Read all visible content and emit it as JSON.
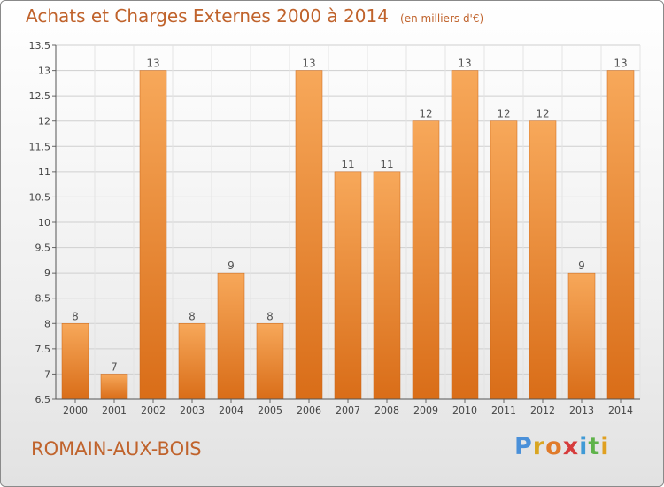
{
  "title": "Achats et Charges Externes 2000 à 2014",
  "unit_note": "(en milliers d'€)",
  "commune": "ROMAIN-AUX-BOIS",
  "logo": {
    "letters": [
      "P",
      "r",
      "o",
      "x",
      "i",
      "t",
      "i"
    ],
    "colors": [
      "#4a90d9",
      "#d9a520",
      "#e07b2a",
      "#d63c3c",
      "#3f9ad6",
      "#5fb34a",
      "#e0a020"
    ]
  },
  "colors": {
    "bar_light": "#f7a85a",
    "bar_dark": "#d96d18",
    "accent_text": "#c0632c"
  },
  "chart_data": {
    "type": "bar",
    "categories": [
      "2000",
      "2001",
      "2002",
      "2003",
      "2004",
      "2005",
      "2006",
      "2007",
      "2008",
      "2009",
      "2010",
      "2011",
      "2012",
      "2013",
      "2014"
    ],
    "values": [
      8,
      7,
      13,
      8,
      9,
      8,
      13,
      11,
      11,
      12,
      13,
      12,
      12,
      9,
      13
    ],
    "data_labels": [
      "8",
      "7",
      "13",
      "8",
      "9",
      "8",
      "13",
      "11",
      "11",
      "12",
      "13",
      "12",
      "12",
      "9",
      "13"
    ],
    "ylim": [
      6.5,
      13.5
    ],
    "yticks": [
      6.5,
      7,
      7.5,
      8,
      8.5,
      9,
      9.5,
      10,
      10.5,
      11,
      11.5,
      12,
      12.5,
      13,
      13.5
    ],
    "ytick_labels": [
      "6.5",
      "7",
      "7.5",
      "8",
      "8.5",
      "9",
      "9.5",
      "10",
      "10.5",
      "11",
      "11.5",
      "12",
      "12.5",
      "13",
      "13.5"
    ],
    "grid": true,
    "xlabel": "",
    "ylabel": ""
  }
}
